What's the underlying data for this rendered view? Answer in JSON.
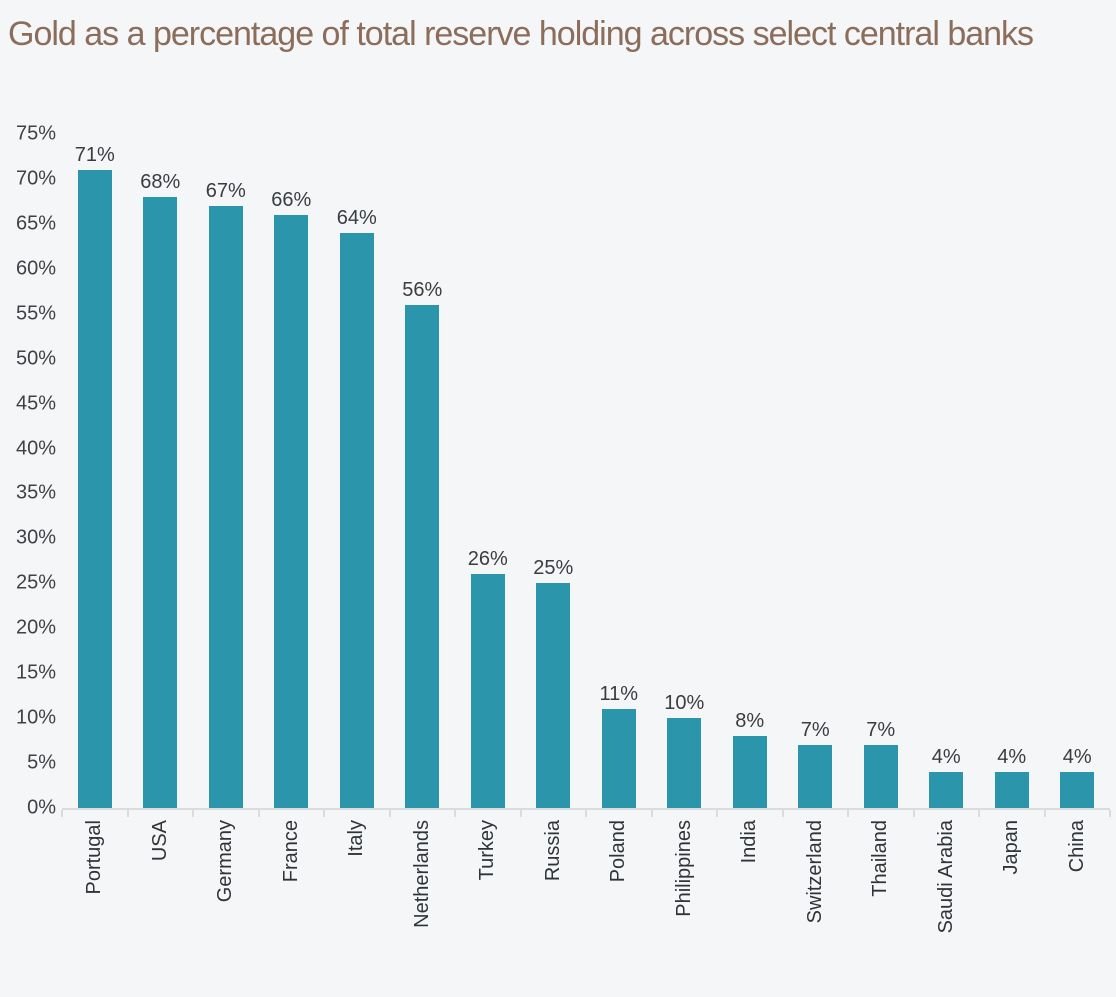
{
  "page": {
    "background_color": "#f4f6f8",
    "title_color": "#8b6d5a"
  },
  "chart_data": {
    "type": "bar",
    "title": "Gold as a percentage of total reserve holding across select central banks",
    "categories": [
      "Portugal",
      "USA",
      "Germany",
      "France",
      "Italy",
      "Netherlands",
      "Turkey",
      "Russia",
      "Poland",
      "Philippines",
      "India",
      "Switzerland",
      "Thailand",
      "Saudi Arabia",
      "Japan",
      "China"
    ],
    "values": [
      71,
      68,
      67,
      66,
      64,
      56,
      26,
      25,
      11,
      10,
      8,
      7,
      7,
      4,
      4,
      4
    ],
    "value_labels": [
      "71%",
      "68%",
      "67%",
      "66%",
      "64%",
      "56%",
      "26%",
      "25%",
      "11%",
      "10%",
      "8%",
      "7%",
      "7%",
      "4%",
      "4%",
      "4%"
    ],
    "xlabel": "",
    "ylabel": "",
    "ylim": [
      0,
      75
    ],
    "ytick_values": [
      0,
      5,
      10,
      15,
      20,
      25,
      30,
      35,
      40,
      45,
      50,
      55,
      60,
      65,
      70,
      75
    ],
    "ytick_labels": [
      "0%",
      "5%",
      "10%",
      "15%",
      "20%",
      "25%",
      "30%",
      "35%",
      "40%",
      "45%",
      "50%",
      "55%",
      "60%",
      "65%",
      "70%",
      "75%"
    ],
    "x_labels_rotated_vertical": true,
    "grid": false,
    "legend": false,
    "bar_color": "#2b95ab",
    "value_label_color": "#3a3d40",
    "tick_label_color": "#3f4245",
    "axis_line_color": "#d9dcdf"
  }
}
